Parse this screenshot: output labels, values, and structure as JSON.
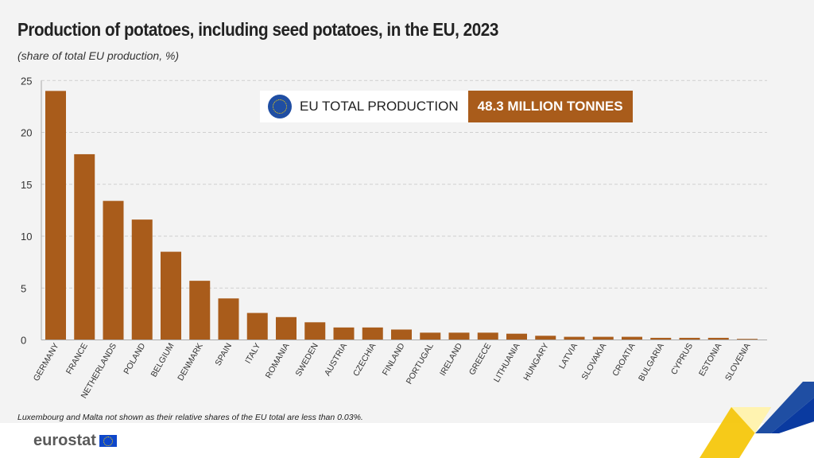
{
  "header": {
    "title": "Production of potatoes, including seed potatoes, in the EU, 2023",
    "subtitle": "(share of total EU production, %)"
  },
  "badge": {
    "label": "EU TOTAL PRODUCTION",
    "value": "48.3 MILLION TONNES",
    "icon": "eu-flag-icon"
  },
  "note": "Luxembourg and Malta not shown as their relative shares of the EU total are less than 0.03%.",
  "logo": {
    "text": "eurostat"
  },
  "colors": {
    "bar": "#a95c1b",
    "background": "#f3f3f3",
    "accent_yellow": "#f5c400",
    "accent_blue": "#1f4ea3"
  },
  "chart_data": {
    "type": "bar",
    "title": "Production of potatoes, including seed potatoes, in the EU, 2023",
    "ylabel": "(share of total EU production, %)",
    "ylim": [
      0,
      25
    ],
    "yticks": [
      0,
      5,
      10,
      15,
      20,
      25
    ],
    "grid": true,
    "categories": [
      "GERMANY",
      "FRANCE",
      "NETHERLANDS",
      "POLAND",
      "BELGIUM",
      "DENMARK",
      "SPAIN",
      "ITALY",
      "ROMANIA",
      "SWEDEN",
      "AUSTRIA",
      "CZECHIA",
      "FINLAND",
      "PORTUGAL",
      "IRELAND",
      "GREECE",
      "LITHUANIA",
      "HUNGARY",
      "LATVIA",
      "SLOVAKIA",
      "CROATIA",
      "BULGARIA",
      "CYPRUS",
      "ESTONIA",
      "SLOVENIA"
    ],
    "values": [
      24.0,
      17.9,
      13.4,
      11.6,
      8.5,
      5.7,
      4.0,
      2.6,
      2.2,
      1.7,
      1.2,
      1.2,
      1.0,
      0.7,
      0.7,
      0.7,
      0.6,
      0.4,
      0.3,
      0.3,
      0.3,
      0.2,
      0.2,
      0.2,
      0.1
    ]
  }
}
